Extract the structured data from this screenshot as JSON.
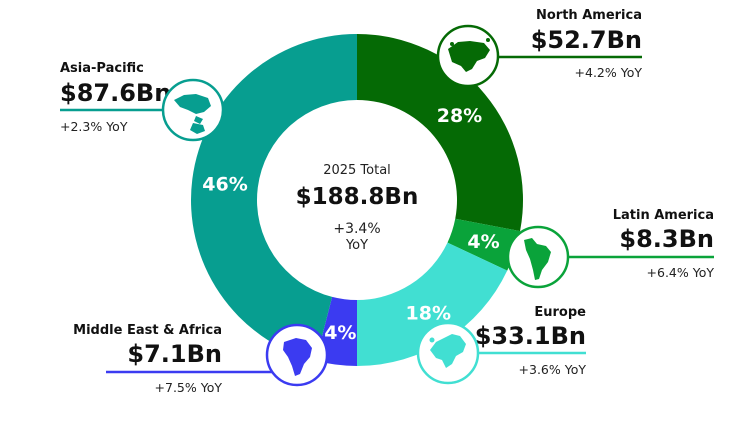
{
  "chart_data": {
    "type": "pie",
    "style": "donut",
    "center": {
      "caption": "2025 Total",
      "value": "$188.8Bn",
      "growth": "+3.4%",
      "growth_unit": "YoY"
    },
    "slices": [
      {
        "name": "North America",
        "share": 28,
        "share_label": "28%",
        "value_label": "$52.7Bn",
        "value": 52.7,
        "yoy": "+4.2% YoY",
        "color": "#056a05",
        "icon": "north-america-map-icon"
      },
      {
        "name": "Latin America",
        "share": 4,
        "share_label": "4%",
        "value_label": "$8.3Bn",
        "value": 8.3,
        "yoy": "+6.4% YoY",
        "color": "#0aa33a",
        "icon": "latin-america-map-icon"
      },
      {
        "name": "Europe",
        "share": 18,
        "share_label": "18%",
        "value_label": "$33.1Bn",
        "value": 33.1,
        "yoy": "+3.6% YoY",
        "color": "#41dfd2",
        "icon": "europe-map-icon"
      },
      {
        "name": "Middle East & Africa",
        "share": 4,
        "share_label": "4%",
        "value_label": "$7.1Bn",
        "value": 7.1,
        "yoy": "+7.5% YoY",
        "color": "#3b3bf1",
        "icon": "africa-map-icon"
      },
      {
        "name": "Asia-Pacific",
        "share": 46,
        "share_label": "46%",
        "value_label": "$87.6Bn",
        "value": 87.6,
        "yoy": "+2.3% YoY",
        "color": "#079e90",
        "icon": "asia-pacific-map-icon"
      }
    ]
  }
}
